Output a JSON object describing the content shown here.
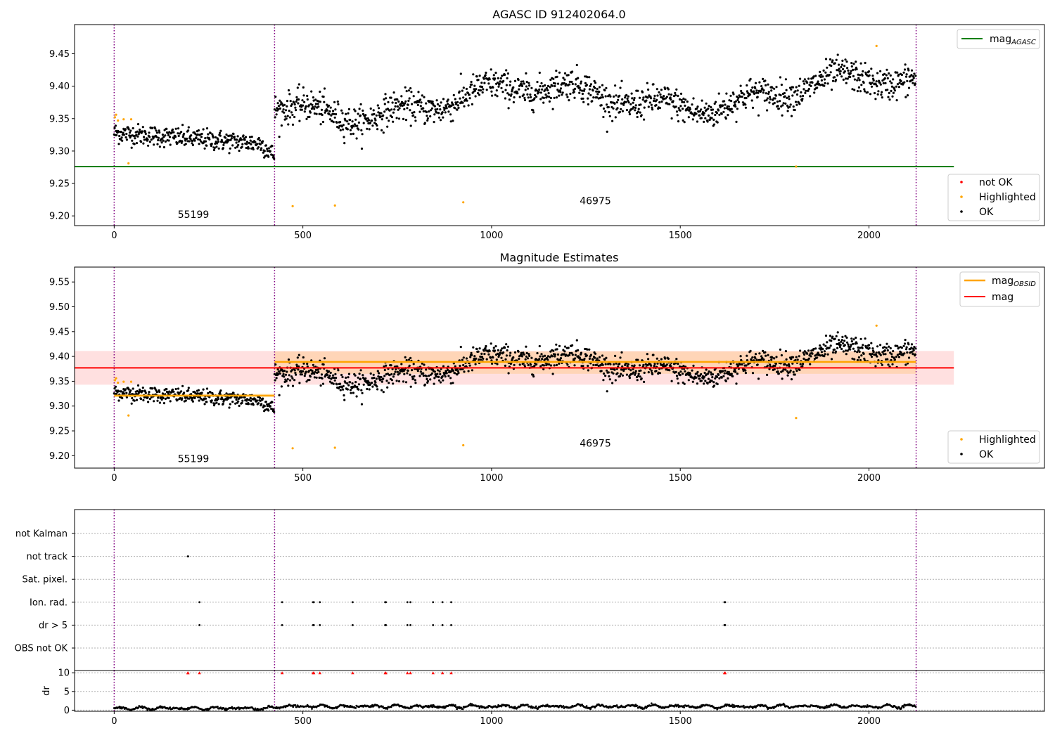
{
  "chart_data": [
    {
      "type": "scatter",
      "title": "AGASC ID 912402064.0",
      "xlim": [
        -105,
        2465
      ],
      "ylim": [
        9.185,
        9.495
      ],
      "x_ticks": [
        0,
        500,
        1000,
        1500,
        2000
      ],
      "y_ticks": [
        9.2,
        9.25,
        9.3,
        9.35,
        9.4,
        9.45
      ],
      "vlines": [
        0,
        425,
        2125
      ],
      "hline": {
        "name": "mag_AGASC",
        "y": 9.276,
        "x_range": [
          -105,
          2225
        ],
        "color": "#008000"
      },
      "annotations": [
        {
          "text": "55199",
          "x": 210,
          "y": 9.197
        },
        {
          "text": "46975",
          "x": 1275,
          "y": 9.218
        }
      ],
      "highlighted": [
        [
          2,
          9.352
        ],
        [
          5,
          9.356
        ],
        [
          10,
          9.347
        ],
        [
          25,
          9.349
        ],
        [
          38,
          9.281
        ],
        [
          45,
          9.349
        ],
        [
          473,
          9.215
        ],
        [
          585,
          9.216
        ],
        [
          925,
          9.221
        ],
        [
          1807,
          9.276
        ],
        [
          2020,
          9.462
        ]
      ],
      "legend_line": [
        {
          "label": "mag",
          "sub": "AGASC",
          "color": "#008000"
        }
      ],
      "legend_points": [
        {
          "label": "not OK",
          "color": "#ff0000"
        },
        {
          "label": "Highlighted",
          "color": "#ffa500"
        },
        {
          "label": "OK",
          "color": "#000000"
        }
      ],
      "legend_line_position": "top-right",
      "legend_points_position": "lower-right",
      "colors": {
        "ok": "#000000",
        "highlighted": "#ffa500",
        "not_ok": "#ff0000",
        "vline": "#800080"
      }
    },
    {
      "type": "scatter",
      "title": "Magnitude Estimates",
      "xlim": [
        -105,
        2465
      ],
      "ylim": [
        9.175,
        9.58
      ],
      "x_ticks": [
        0,
        500,
        1000,
        1500,
        2000
      ],
      "y_ticks": [
        9.2,
        9.25,
        9.3,
        9.35,
        9.4,
        9.45,
        9.5,
        9.55
      ],
      "vlines": [
        0,
        425,
        2125
      ],
      "mag_band": {
        "y": 9.377,
        "low": 9.343,
        "high": 9.411,
        "x_range": [
          -105,
          2225
        ]
      },
      "obsid_segments": [
        {
          "x_range": [
            0,
            425
          ],
          "y": 9.321,
          "low": 9.318,
          "high": 9.325
        },
        {
          "x_range": [
            425,
            2125
          ],
          "y": 9.389,
          "low": 9.365,
          "high": 9.41
        }
      ],
      "annotations": [
        {
          "text": "55199",
          "x": 210,
          "y": 9.187
        },
        {
          "text": "46975",
          "x": 1275,
          "y": 9.218
        }
      ],
      "highlighted": [
        [
          2,
          9.352
        ],
        [
          5,
          9.356
        ],
        [
          10,
          9.347
        ],
        [
          25,
          9.349
        ],
        [
          38,
          9.281
        ],
        [
          45,
          9.349
        ],
        [
          473,
          9.215
        ],
        [
          585,
          9.216
        ],
        [
          925,
          9.221
        ],
        [
          1807,
          9.276
        ],
        [
          2020,
          9.462
        ]
      ],
      "legend_line": [
        {
          "label": "mag",
          "sub": "OBSID",
          "color": "#ffa500"
        },
        {
          "label": "mag",
          "sub": "",
          "color": "#ff0000"
        }
      ],
      "legend_points": [
        {
          "label": "Highlighted",
          "color": "#ffa500"
        },
        {
          "label": "OK",
          "color": "#000000"
        }
      ],
      "legend_line_position": "top-right",
      "legend_points_position": "lower-right",
      "colors": {
        "ok": "#000000",
        "highlighted": "#ffa500",
        "band": "#ff0000",
        "obsid": "#ffa500",
        "vline": "#800080"
      }
    },
    {
      "type": "scatter",
      "title": "",
      "xlim": [
        -105,
        2465
      ],
      "categories": [
        "not Kalman",
        "not track",
        "Sat. pixel.",
        "Ion. rad.",
        "dr > 5",
        "OBS not OK"
      ],
      "flags": {
        "not track": [
          195,
          196
        ],
        "Ion. rad.": [
          226,
          445,
          527,
          529,
          545,
          632,
          718,
          720,
          777,
          785,
          845,
          870,
          893,
          1617,
          1619
        ],
        "dr > 5": [
          226,
          445,
          527,
          529,
          545,
          632,
          718,
          720,
          777,
          785,
          845,
          870,
          893,
          1617,
          1619
        ]
      },
      "vlines": [
        0,
        425,
        2125
      ],
      "colors": {
        "flag": "#000000",
        "vline": "#800080"
      }
    },
    {
      "type": "scatter",
      "ylabel": "dr",
      "xlim": [
        -105,
        2465
      ],
      "ylim": [
        -0.3,
        10.6
      ],
      "x_ticks": [
        0,
        500,
        1000,
        1500,
        2000
      ],
      "y_ticks": [
        0,
        5,
        10
      ],
      "vlines": [
        0,
        425,
        2125
      ],
      "clipped_x": [
        195,
        196,
        226,
        445,
        527,
        529,
        545,
        632,
        718,
        720,
        777,
        785,
        845,
        870,
        893,
        1617,
        1619
      ],
      "clipped_y": 10,
      "colors": {
        "dr": "#000000",
        "clipped": "#ff0000",
        "vline": "#800080"
      }
    }
  ]
}
